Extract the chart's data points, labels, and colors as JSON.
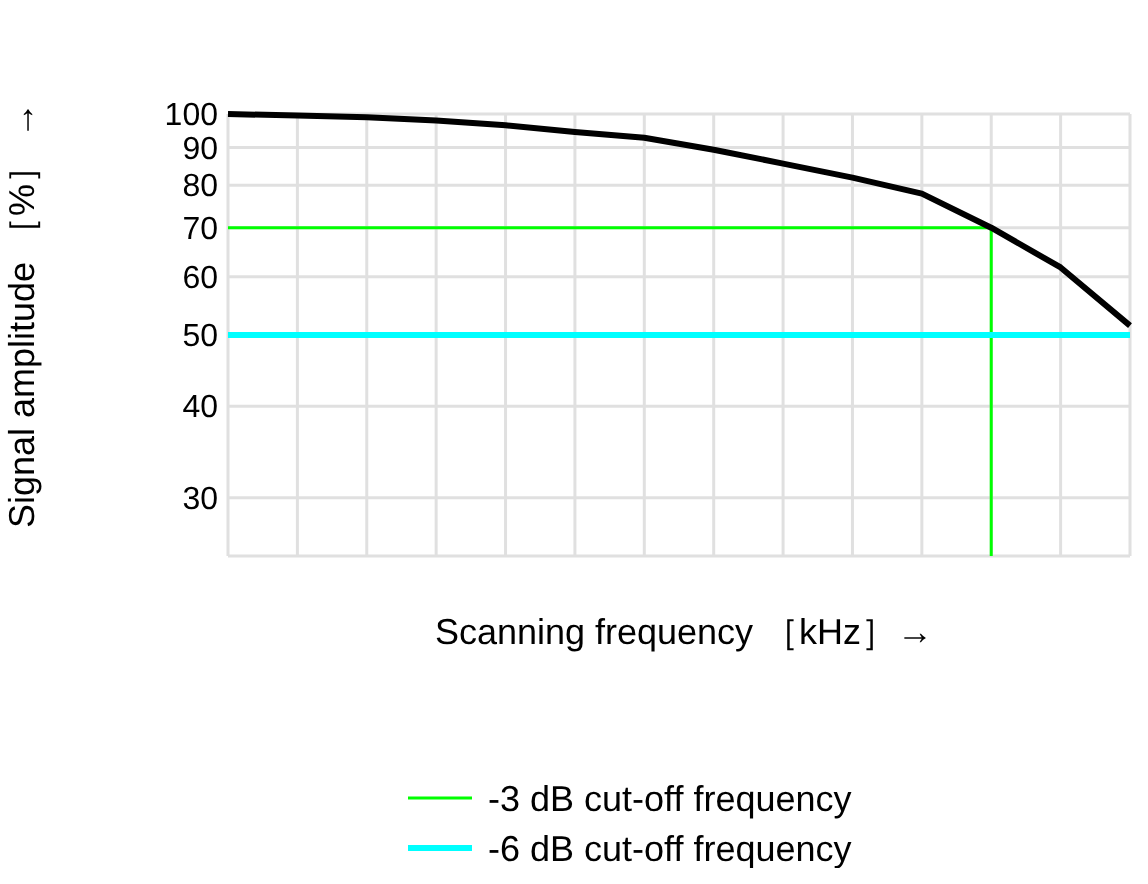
{
  "chart_data": {
    "type": "line",
    "xlabel": "Scanning frequency ［kHz］→",
    "ylabel": "Signal amplitude ［%］ →",
    "categories": [
      null,
      null,
      null,
      null,
      null,
      null,
      null,
      null,
      null,
      null,
      null,
      null,
      null,
      null
    ],
    "series": [
      {
        "color": "#000000",
        "values": [
          100,
          99.5,
          99,
          98,
          96.5,
          94.5,
          92.8,
          89.4,
          85.6,
          81.9,
          77.9,
          70,
          61.8,
          51.5
        ]
      },
      {
        "name": "-3 dB cut-off frequency",
        "color": "#00ff00",
        "values": [
          70,
          70,
          70,
          70,
          70,
          70,
          70,
          70,
          70,
          70,
          70,
          70,
          null,
          null
        ]
      },
      {
        "name": "-6 dB cut-off frequency",
        "color": "#00ffff",
        "values": [
          50,
          50,
          50,
          50,
          50,
          50,
          50,
          50,
          50,
          50,
          50,
          50,
          50,
          50
        ]
      }
    ],
    "log": "y",
    "ylim": [
      25,
      100
    ],
    "yticks": [
      30,
      40,
      50,
      60,
      70,
      80,
      90,
      100
    ],
    "tick_labels": "y",
    "grid": true,
    "legend": "bottom",
    "marker": "none",
    "line_style": "solid"
  }
}
